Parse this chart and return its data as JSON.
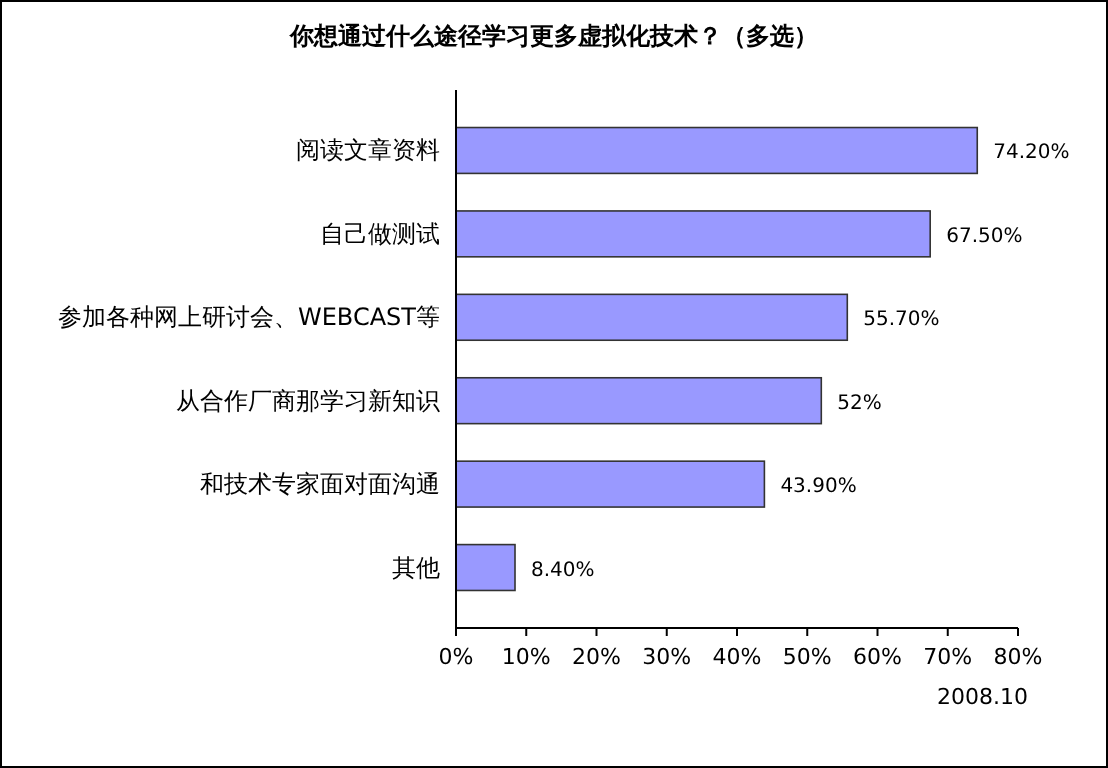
{
  "chart_data": {
    "type": "bar",
    "orientation": "horizontal",
    "title": "你想通过什么途径学习更多虚拟化技术？（多选）",
    "categories": [
      "阅读文章资料",
      "自己做测试",
      "参加各种网上研讨会、WEBCAST等",
      "从合作厂商那学习新知识",
      "和技术专家面对面沟通",
      "其他"
    ],
    "values": [
      74.2,
      67.5,
      55.7,
      52,
      43.9,
      8.4
    ],
    "value_labels": [
      "74.20%",
      "67.50%",
      "55.70%",
      "52%",
      "43.90%",
      "8.40%"
    ],
    "color": "#9999ff",
    "xlim": [
      0,
      80
    ],
    "xticks": [
      {
        "value": 0,
        "label": "0%"
      },
      {
        "value": 10,
        "label": "10%"
      },
      {
        "value": 20,
        "label": "20%"
      },
      {
        "value": 30,
        "label": "30%"
      },
      {
        "value": 40,
        "label": "40%"
      },
      {
        "value": 50,
        "label": "50%"
      },
      {
        "value": 60,
        "label": "60%"
      },
      {
        "value": 70,
        "label": "70%"
      },
      {
        "value": 80,
        "label": "80%"
      }
    ],
    "annotations": [
      "2008.10"
    ],
    "grid": false
  }
}
